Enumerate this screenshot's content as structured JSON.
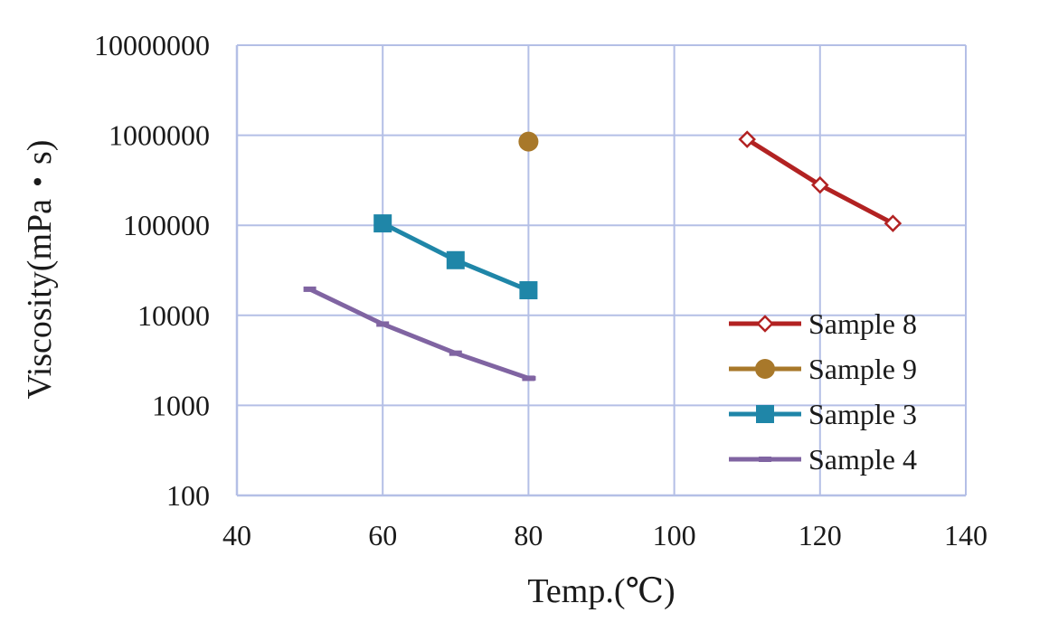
{
  "chart_data": {
    "type": "line",
    "title": "",
    "xlabel": "Temp.(℃)",
    "ylabel": "Viscosity(mPa・s)",
    "xlim": [
      40,
      140
    ],
    "ylim": [
      100,
      10000000
    ],
    "y_scale": "log",
    "x_ticks": [
      "40",
      "60",
      "80",
      "100",
      "120",
      "140"
    ],
    "y_ticks": [
      "100",
      "1000",
      "10000",
      "100000",
      "1000000",
      "10000000"
    ],
    "grid": true,
    "legend_position": "right",
    "series": [
      {
        "name": "Sample 8",
        "color": "#b22222",
        "marker": "open-diamond",
        "x": [
          110,
          120,
          130
        ],
        "y": [
          900000,
          280000,
          105000
        ]
      },
      {
        "name": "Sample 9",
        "color": "#a8782a",
        "marker": "filled-circle",
        "x": [
          80
        ],
        "y": [
          850000
        ]
      },
      {
        "name": "Sample 3",
        "color": "#1f86a8",
        "marker": "filled-square",
        "x": [
          60,
          70,
          80
        ],
        "y": [
          105000,
          41000,
          19000
        ]
      },
      {
        "name": "Sample 4",
        "color": "#8064a2",
        "marker": "dash",
        "x": [
          50,
          60,
          70,
          80,
          81
        ],
        "y": [
          19500,
          8000,
          3800,
          2000,
          2000
        ]
      }
    ]
  }
}
